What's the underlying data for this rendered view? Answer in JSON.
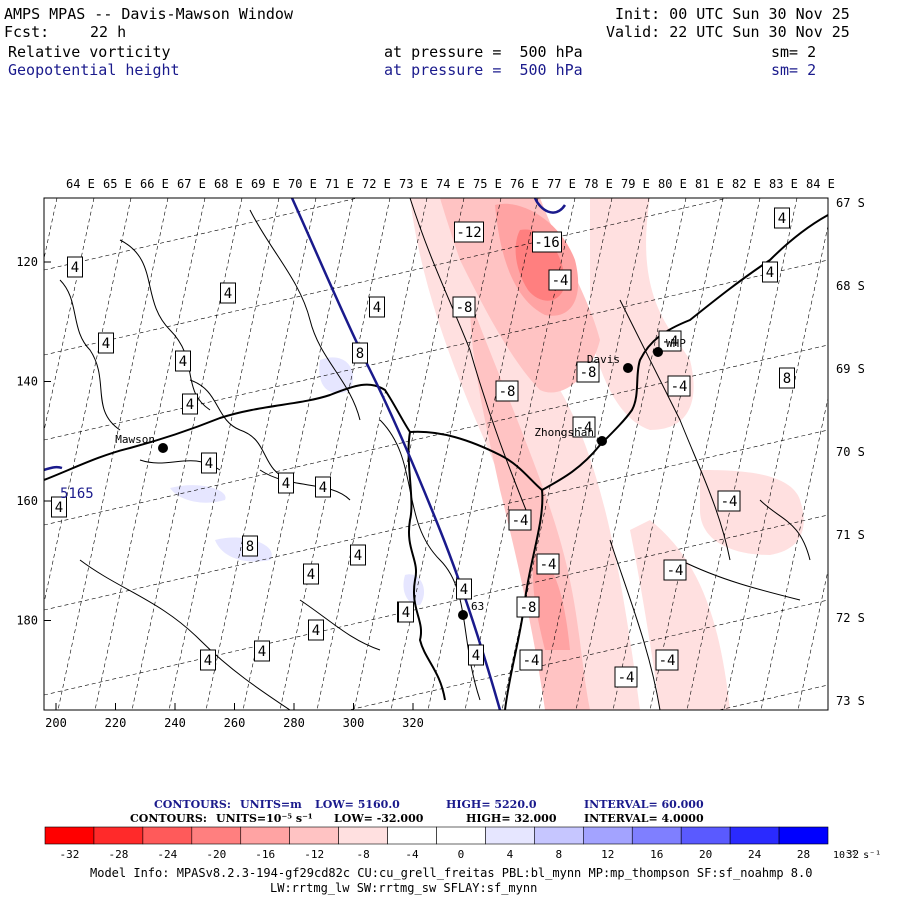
{
  "header": {
    "title": "AMPS MPAS -- Davis-Mawson Window",
    "fcst_label": "Fcst:",
    "fcst_value": "22 h",
    "init": "Init: 00 UTC Sun 30 Nov 25",
    "valid": "Valid: 22 UTC Sun 30 Nov 25",
    "field1": {
      "name": "Relative vorticity",
      "pressure": "at pressure =  500 hPa",
      "smooth": "sm= 2"
    },
    "field2": {
      "name": "Geopotential height",
      "pressure": "at pressure =  500 hPa",
      "smooth": "sm= 2"
    }
  },
  "map": {
    "longitude_labels": [
      "64 E",
      "65 E",
      "66 E",
      "67 E",
      "68 E",
      "69 E",
      "70 E",
      "71 E",
      "72 E",
      "73 E",
      "74 E",
      "75 E",
      "76 E",
      "77 E",
      "78 E",
      "79 E",
      "80 E",
      "81 E",
      "82 E",
      "83 E",
      "84 E"
    ],
    "latitude_labels": [
      "67 S",
      "68 S",
      "69 S",
      "70 S",
      "71 S",
      "72 S",
      "73 S"
    ],
    "x_ticks": [
      "200",
      "220",
      "240",
      "260",
      "280",
      "300",
      "320"
    ],
    "y_ticks": [
      "120",
      "140",
      "160",
      "180"
    ],
    "stations": [
      {
        "name": "Mawson"
      },
      {
        "name": "Davis"
      },
      {
        "name": "Zhongshan"
      },
      {
        "name": "WHP"
      },
      {
        "name": "63"
      }
    ],
    "height_label": "5165",
    "contour_labels": {
      "positive": [
        "4",
        "4",
        "4",
        "4",
        "4",
        "4",
        "4",
        "4",
        "4",
        "4",
        "4",
        "4",
        "4",
        "4",
        "4",
        "4",
        "4",
        "4",
        "4",
        "8",
        "8",
        "8",
        "8",
        "4"
      ],
      "negative": [
        "-12",
        "-16",
        "-8",
        "-8",
        "-8",
        "-4",
        "-4",
        "-4",
        "-4",
        "-8",
        "-4",
        "-4",
        "-4",
        "-4",
        "-4",
        "-4",
        "-4"
      ]
    }
  },
  "info": {
    "line1": {
      "label": "CONTOURS:",
      "units": "UNITS=m",
      "low": "LOW=  5160.0",
      "high": "HIGH=  5220.0",
      "interval": "INTERVAL=   60.000"
    },
    "line2": {
      "label": "CONTOURS:",
      "units": "UNITS=10⁻⁵ s⁻¹",
      "low": "LOW=  -32.000",
      "high": "HIGH=  32.000",
      "interval": "INTERVAL=   4.0000"
    }
  },
  "colorbar": {
    "colors": [
      "#ff0000",
      "#ff2a2a",
      "#ff5a5a",
      "#ff7f7f",
      "#ffa3a3",
      "#ffc3c3",
      "#ffe0e0",
      "#ffffff",
      "#ffffff",
      "#e6e6ff",
      "#c6c6ff",
      "#a3a3ff",
      "#7f7fff",
      "#5a5aff",
      "#2a2aff",
      "#0000ff"
    ],
    "tick_labels": [
      "-32",
      "-28",
      "-24",
      "-20",
      "-16",
      "-12",
      "-8",
      "-4",
      "0",
      "4",
      "8",
      "12",
      "16",
      "20",
      "24",
      "28",
      "32"
    ],
    "unit_label": "10⁻⁵ s⁻¹"
  },
  "footer": {
    "line1": "Model Info: MPASv8.2.3-194-gf29cd82c CU:cu_grell_freitas PBL:bl_mynn MP:mp_thompson SF:sf_noahmp 8.0",
    "line2": "LW:rrtmg_lw SW:rrtmg_sw SFLAY:sf_mynn"
  }
}
